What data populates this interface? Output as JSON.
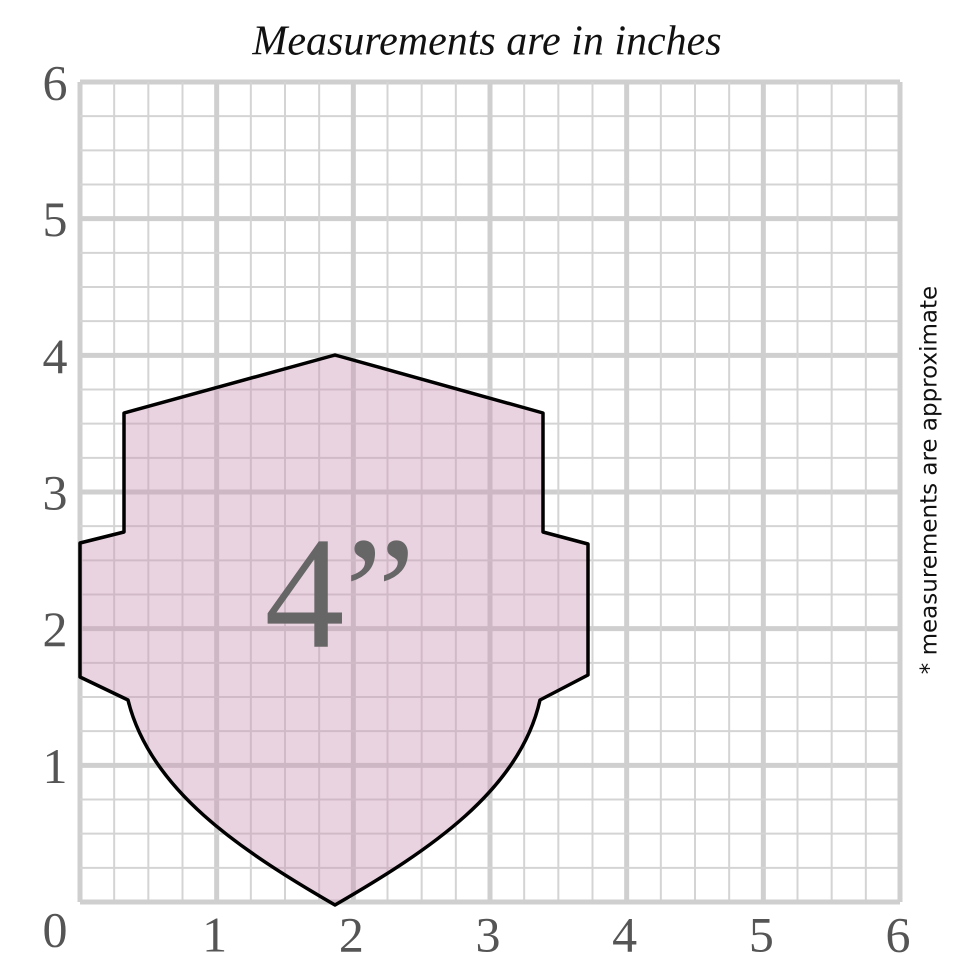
{
  "title": "Measurements are in inches",
  "axis_labels": {
    "origin": "0",
    "x": [
      "1",
      "2",
      "3",
      "4",
      "5",
      "6"
    ],
    "y": [
      "1",
      "2",
      "3",
      "4",
      "5",
      "6"
    ]
  },
  "shape_label": "4”",
  "note": "* measurements are approximate"
}
